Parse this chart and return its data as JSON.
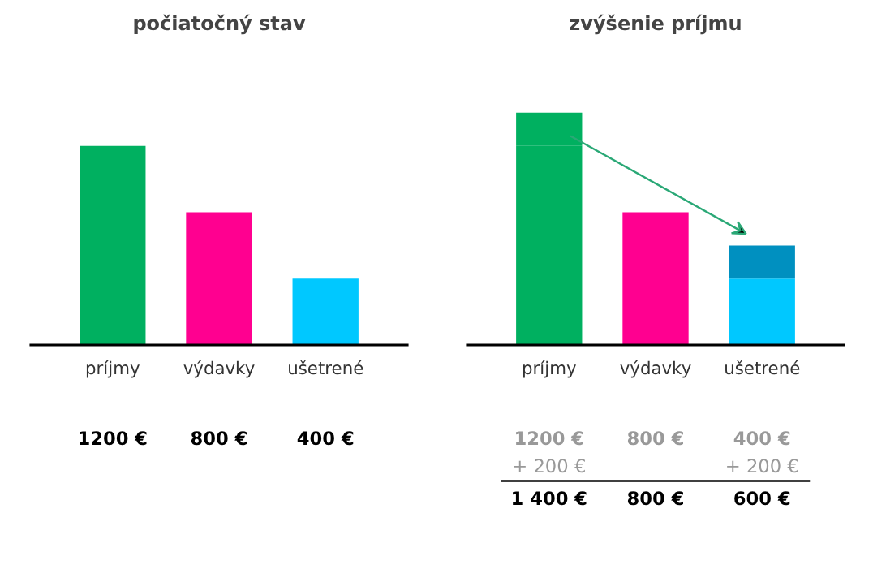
{
  "chart_data": [
    {
      "type": "bar",
      "title": "počiatočný stav",
      "categories": [
        "príjmy",
        "výdavky",
        "ušetrené"
      ],
      "values": [
        1200,
        800,
        400
      ],
      "colors": [
        "#00b060",
        "#ff0090",
        "#00c8ff"
      ],
      "value_labels": [
        "1200 €",
        "800 €",
        "400 €"
      ]
    },
    {
      "type": "bar",
      "title": "zvýšenie príjmu",
      "categories": [
        "príjmy",
        "výdavky",
        "ušetrené"
      ],
      "stacked": true,
      "series": [
        {
          "values": [
            1200,
            800,
            400
          ],
          "colors": [
            "#00b060",
            "#ff0090",
            "#00c8ff"
          ],
          "value_labels": [
            "1200 €",
            "800 €",
            "400 €"
          ]
        },
        {
          "values": [
            200,
            null,
            200
          ],
          "colors": [
            "#00b060",
            null,
            "#0090c0"
          ],
          "value_labels": [
            "+ 200 €",
            null,
            "+ 200 €"
          ]
        }
      ],
      "annotations": [
        "1 400 €",
        "800 €",
        "600 €"
      ]
    }
  ]
}
